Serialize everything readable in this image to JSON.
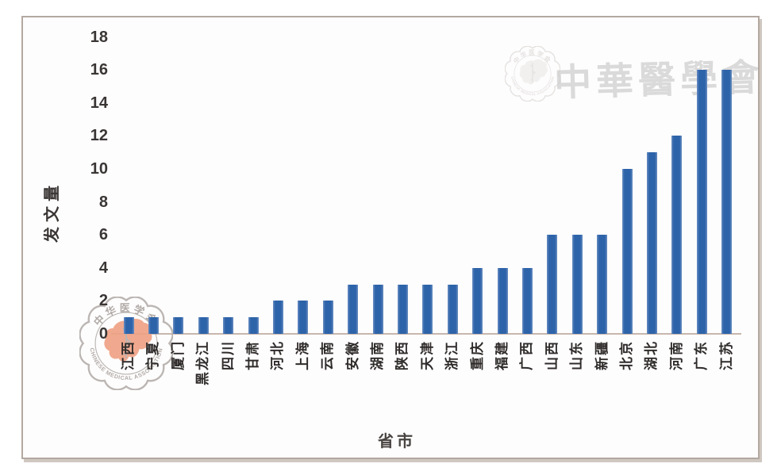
{
  "chart_data": {
    "type": "bar",
    "title": "",
    "xlabel": "省市",
    "ylabel": "发文量",
    "categories": [
      "江西",
      "宁夏",
      "厦门",
      "黑龙江",
      "四川",
      "甘肃",
      "河北",
      "上海",
      "云南",
      "安徽",
      "湖南",
      "陕西",
      "天津",
      "浙江",
      "重庆",
      "福建",
      "广西",
      "山西",
      "山东",
      "新疆",
      "北京",
      "湖北",
      "河南",
      "广东",
      "江苏"
    ],
    "values": [
      1,
      1,
      1,
      1,
      1,
      1,
      2,
      2,
      2,
      3,
      3,
      3,
      3,
      3,
      4,
      4,
      4,
      6,
      6,
      6,
      10,
      11,
      12,
      16,
      16
    ],
    "ylim": [
      0,
      18
    ],
    "ytick_step": 2,
    "grid": false,
    "legend": "none",
    "bar_color": "#2d63a9"
  },
  "watermark": {
    "calligraphy_text": "中華醫學會",
    "seal_top_text": "中华医学会",
    "seal_bottom_text": "CHINESE MEDICAL ASSOCIATION"
  },
  "colors": {
    "bar": "#2d63a9",
    "axis_line": "#c8b7ad",
    "tick_text": "#3a3635",
    "frame_border": "#b3a9a1",
    "stamp_line": "#b4afab",
    "stamp_map": "#efa184"
  }
}
